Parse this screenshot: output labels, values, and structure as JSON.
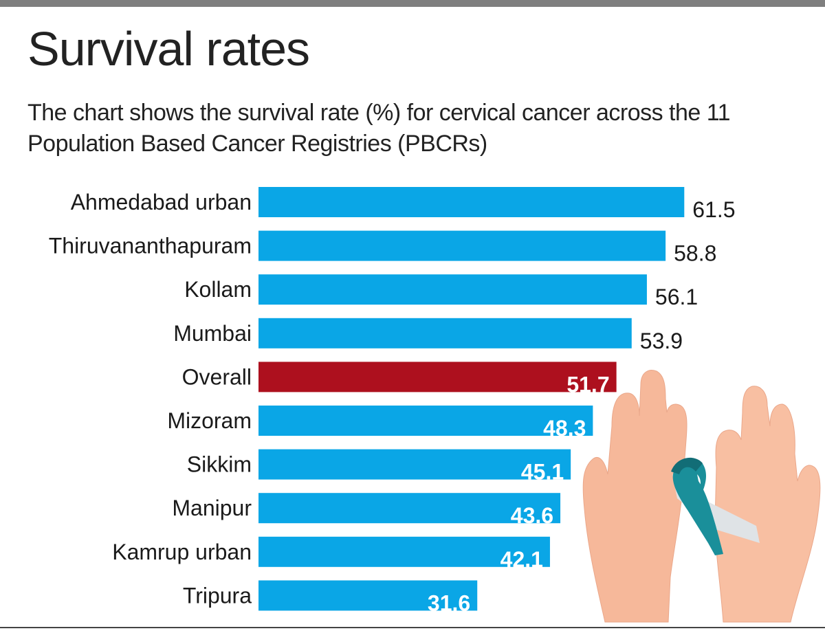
{
  "header": {
    "title": "Survival rates",
    "subtitle": "The chart shows the survival rate (%) for cervical cancer across the 11 Population Based Cancer Registries (PBCRs)"
  },
  "colors": {
    "bar": "#0aa6e6",
    "highlight_bar": "#ad101e",
    "label_outside": "#1a1a1a",
    "label_inside": "#ffffff",
    "skin": "#f6b89a",
    "ribbon_teal": "#1a8f9a",
    "ribbon_white": "#dfe3e6"
  },
  "illustration": {
    "icon": "hands-holding-cancer-ribbon-icon"
  },
  "chart_data": {
    "type": "bar",
    "orientation": "horizontal",
    "title": "Survival rates",
    "subtitle": "The chart shows the survival rate (%) for cervical cancer across the 11 Population Based Cancer Registries (PBCRs)",
    "xlabel": "",
    "ylabel": "",
    "unit": "%",
    "xlim": [
      0,
      61.5
    ],
    "grid": false,
    "legend": "none",
    "categories": [
      "Ahmedabad urban",
      "Thiruvananthapuram",
      "Kollam",
      "Mumbai",
      "Overall",
      "Mizoram",
      "Sikkim",
      "Manipur",
      "Kamrup urban",
      "Tripura"
    ],
    "values": [
      61.5,
      58.8,
      56.1,
      53.9,
      51.7,
      48.3,
      45.1,
      43.6,
      42.1,
      31.6
    ],
    "value_labels": [
      "61.5",
      "58.8",
      "56.1",
      "53.9",
      "51.7",
      "48.3",
      "45.1",
      "43.6",
      "42.1",
      "31.6"
    ],
    "highlight": [
      "Overall"
    ],
    "label_position": [
      "outside",
      "outside",
      "outside",
      "outside",
      "inside",
      "inside",
      "inside",
      "inside",
      "inside",
      "inside"
    ]
  }
}
